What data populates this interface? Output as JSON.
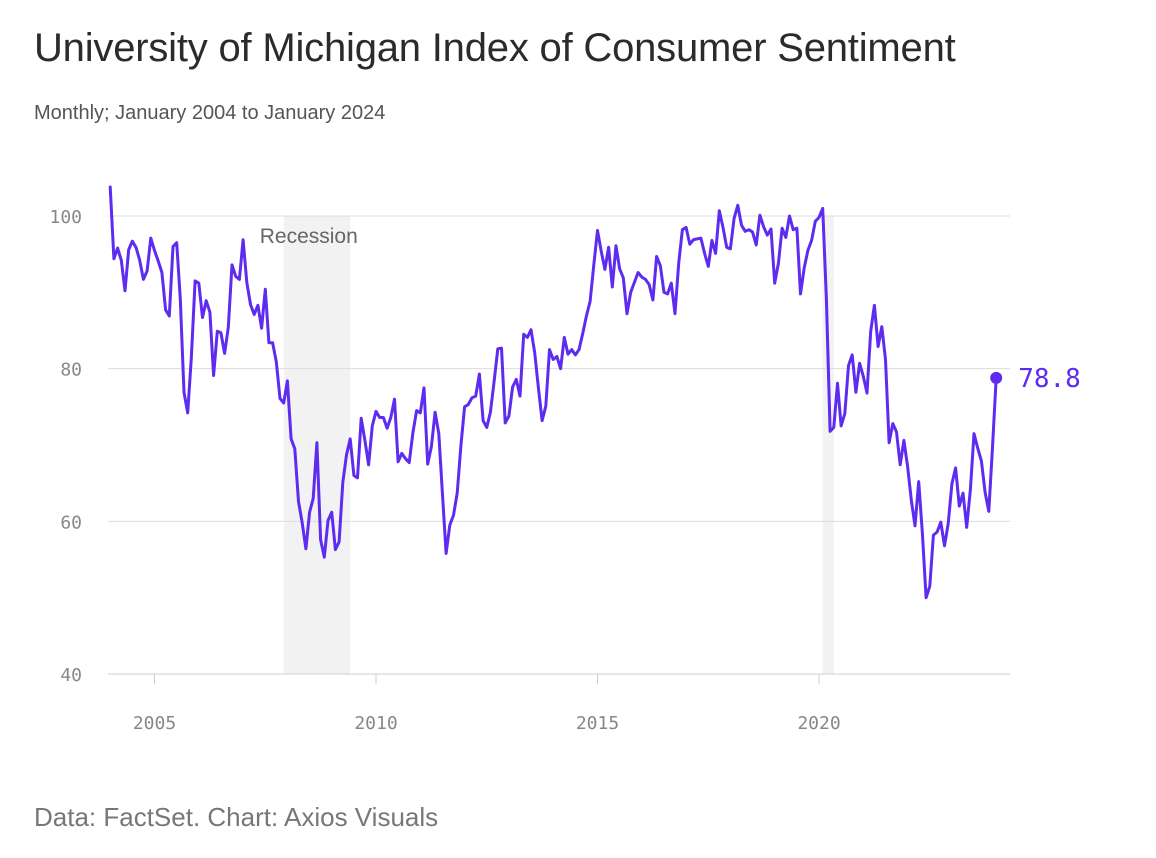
{
  "header": {
    "title": "University of Michigan Index of Consumer Sentiment",
    "subtitle": "Monthly; January 2004 to January 2024"
  },
  "footer": {
    "source": "Data: FactSet. Chart: Axios Visuals"
  },
  "colors": {
    "line": "#5e2bf0",
    "recession": "#f2f2f2",
    "grid": "#dcdcdc"
  },
  "chart_data": {
    "type": "line",
    "xlim": [
      2004.0,
      2024.0
    ],
    "ylim": [
      40,
      104
    ],
    "x_ticks": [
      {
        "value": 2005,
        "label": "2005"
      },
      {
        "value": 2010,
        "label": "2010"
      },
      {
        "value": 2015,
        "label": "2015"
      },
      {
        "value": 2020,
        "label": "2020"
      }
    ],
    "y_ticks": [
      {
        "value": 40,
        "label": "40"
      },
      {
        "value": 60,
        "label": "60"
      },
      {
        "value": 80,
        "label": "80"
      },
      {
        "value": 100,
        "label": "100"
      }
    ],
    "grid": true,
    "recessions": [
      {
        "start": 2007.917,
        "end": 2009.417,
        "label": "Recession"
      },
      {
        "start": 2020.083,
        "end": 2020.333,
        "label": ""
      }
    ],
    "last_value_label": "78.8",
    "series": [
      {
        "start": "2004-01",
        "frequency": "monthly",
        "values": [
          103.8,
          94.4,
          95.8,
          94.2,
          90.2,
          95.6,
          96.7,
          95.9,
          94.2,
          91.7,
          92.8,
          97.1,
          95.5,
          94.1,
          92.6,
          87.7,
          86.9,
          96.0,
          96.5,
          89.1,
          76.9,
          74.2,
          81.6,
          91.5,
          91.2,
          86.7,
          88.9,
          87.4,
          79.1,
          84.9,
          84.7,
          82.0,
          85.4,
          93.6,
          92.1,
          91.7,
          96.9,
          91.3,
          88.4,
          87.1,
          88.3,
          85.3,
          90.4,
          83.4,
          83.4,
          80.9,
          76.1,
          75.5,
          78.4,
          70.8,
          69.5,
          62.6,
          59.8,
          56.4,
          61.2,
          63.0,
          70.3,
          57.6,
          55.3,
          60.1,
          61.2,
          56.3,
          57.3,
          65.1,
          68.7,
          70.8,
          66.0,
          65.7,
          73.5,
          70.6,
          67.4,
          72.5,
          74.4,
          73.6,
          73.6,
          72.2,
          73.6,
          76.0,
          67.8,
          68.9,
          68.2,
          67.7,
          71.6,
          74.5,
          74.2,
          77.5,
          67.5,
          69.8,
          74.3,
          71.5,
          63.7,
          55.8,
          59.5,
          60.8,
          63.7,
          69.9,
          75.0,
          75.3,
          76.2,
          76.4,
          79.3,
          73.2,
          72.3,
          74.3,
          78.3,
          82.6,
          82.7,
          72.9,
          73.8,
          77.6,
          78.6,
          76.4,
          84.5,
          84.1,
          85.1,
          82.1,
          77.5,
          73.2,
          75.1,
          82.5,
          81.2,
          81.6,
          80.0,
          84.1,
          81.9,
          82.5,
          81.8,
          82.5,
          84.6,
          86.9,
          88.8,
          93.6,
          98.1,
          95.4,
          93.0,
          95.9,
          90.7,
          96.1,
          93.1,
          91.9,
          87.2,
          90.0,
          91.3,
          92.6,
          92.0,
          91.7,
          91.0,
          89.0,
          94.7,
          93.5,
          90.0,
          89.8,
          91.2,
          87.2,
          93.8,
          98.2,
          98.5,
          96.3,
          96.9,
          97.0,
          97.1,
          95.1,
          93.4,
          96.8,
          95.1,
          100.7,
          98.5,
          95.9,
          95.7,
          99.7,
          101.4,
          98.8,
          98.0,
          98.2,
          97.9,
          96.2,
          100.1,
          98.6,
          97.5,
          98.3,
          91.2,
          93.8,
          98.4,
          97.2,
          100.0,
          98.2,
          98.4,
          89.8,
          93.2,
          95.5,
          96.8,
          99.3,
          99.8,
          101.0,
          89.1,
          71.8,
          72.3,
          78.1,
          72.5,
          74.1,
          80.4,
          81.8,
          76.9,
          80.7,
          79.0,
          76.8,
          84.9,
          88.3,
          82.9,
          85.5,
          81.2,
          70.3,
          72.8,
          71.7,
          67.4,
          70.6,
          67.2,
          62.8,
          59.4,
          65.2,
          58.4,
          50.0,
          51.5,
          58.2,
          58.6,
          59.9,
          56.8,
          59.7,
          64.9,
          67.0,
          62.0,
          63.7,
          59.2,
          64.2,
          71.5,
          69.6,
          67.9,
          63.8,
          61.3,
          69.7,
          78.8
        ]
      }
    ]
  }
}
